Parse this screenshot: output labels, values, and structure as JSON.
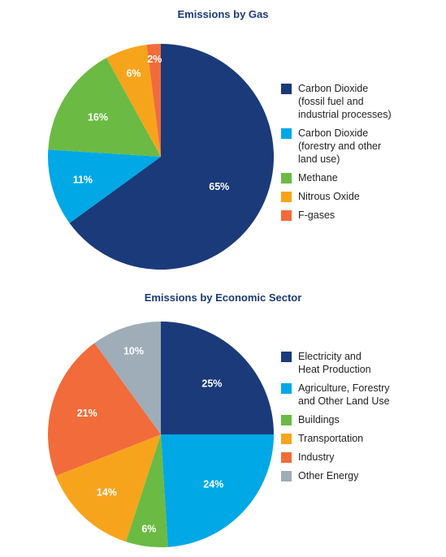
{
  "chart_data": [
    {
      "type": "pie",
      "title": "Emissions by Gas",
      "legend_position": "right",
      "slices": [
        {
          "name": "Carbon Dioxide (fossil fuel and industrial processes)",
          "legend_lines": [
            "Carbon Dioxide",
            "(fossil fuel and",
            "industrial processes)"
          ],
          "value": 65,
          "label": "65%",
          "color": "#1b3a7a"
        },
        {
          "name": "Carbon Dioxide (forestry and other land use)",
          "legend_lines": [
            "Carbon Dioxide",
            "(forestry and other",
            "land use)"
          ],
          "value": 11,
          "label": "11%",
          "color": "#00a8e6"
        },
        {
          "name": "Methane",
          "legend_lines": [
            "Methane"
          ],
          "value": 16,
          "label": "16%",
          "color": "#6bba44"
        },
        {
          "name": "Nitrous Oxide",
          "legend_lines": [
            "Nitrous Oxide"
          ],
          "value": 6,
          "label": "6%",
          "color": "#f7a41d"
        },
        {
          "name": "F-gases",
          "legend_lines": [
            "F-gases"
          ],
          "value": 2,
          "label": "2%",
          "color": "#f26b3a"
        }
      ]
    },
    {
      "type": "pie",
      "title": "Emissions by Economic Sector",
      "legend_position": "right",
      "slices": [
        {
          "name": "Electricity and Heat Production",
          "legend_lines": [
            "Electricity and",
            "Heat Production"
          ],
          "value": 25,
          "label": "25%",
          "color": "#1b3a7a"
        },
        {
          "name": "Agriculture, Forestry and Other Land Use",
          "legend_lines": [
            "Agriculture, Forestry",
            "and Other Land Use"
          ],
          "value": 24,
          "label": "24%",
          "color": "#00a8e6"
        },
        {
          "name": "Buildings",
          "legend_lines": [
            "Buildings"
          ],
          "value": 6,
          "label": "6%",
          "color": "#6bba44"
        },
        {
          "name": "Transportation",
          "legend_lines": [
            "Transportation"
          ],
          "value": 14,
          "label": "14%",
          "color": "#f7a41d"
        },
        {
          "name": "Industry",
          "legend_lines": [
            "Industry"
          ],
          "value": 21,
          "label": "21%",
          "color": "#f26b3a"
        },
        {
          "name": "Other Energy",
          "legend_lines": [
            "Other Energy"
          ],
          "value": 10,
          "label": "10%",
          "color": "#9fadb8"
        }
      ]
    }
  ]
}
